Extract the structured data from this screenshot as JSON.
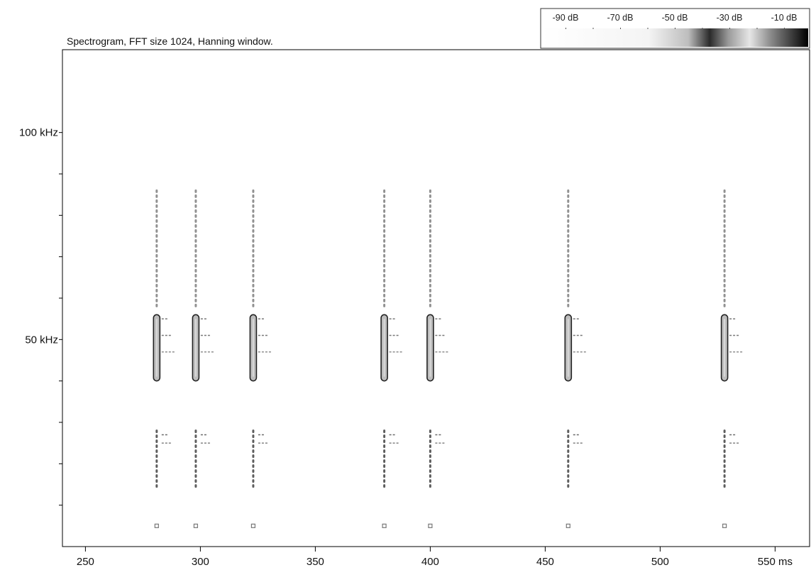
{
  "chart_data": {
    "type": "heatmap",
    "subtype": "spectrogram",
    "title": "Spectrogram, FFT size 1024, Hanning window.",
    "xlabel": "",
    "ylabel": "",
    "x_unit": "ms",
    "y_unit": "kHz",
    "xlim": [
      240,
      565
    ],
    "ylim": [
      0,
      120
    ],
    "x_ticks": [
      250,
      300,
      350,
      400,
      450,
      500,
      550
    ],
    "x_tick_labels": [
      "250",
      "300",
      "350",
      "400",
      "450",
      "500",
      "550 ms"
    ],
    "y_ticks": [
      10,
      20,
      30,
      40,
      50,
      60,
      70,
      80,
      90,
      100
    ],
    "y_tick_labels": [
      {
        "value": 100,
        "label": "100 kHz"
      },
      {
        "value": 50,
        "label": "50 kHz"
      }
    ],
    "grid": false,
    "colorbar": {
      "position": "top-right",
      "labels": [
        "-90 dB",
        "-70 dB",
        "-50 dB",
        "-30 dB",
        "-10 dB"
      ],
      "values_db": [
        -90,
        -70,
        -50,
        -30,
        -10
      ]
    },
    "calls_ms": [
      281,
      298,
      323,
      380,
      400,
      460,
      528
    ],
    "fundamental_khz": {
      "start": 56,
      "end": 40,
      "intensity_db": -15
    },
    "harmonics": [
      {
        "name": "upper",
        "start_khz": 86,
        "end_khz": 58,
        "intensity_db": -55
      },
      {
        "name": "lower",
        "start_khz": 28,
        "end_khz": 14,
        "intensity_db": -35
      },
      {
        "name": "bottom",
        "khz": 5,
        "intensity_db": -45
      }
    ],
    "echo_khz": [
      {
        "y": 55,
        "intensity_db": -40
      },
      {
        "y": 51,
        "intensity_db": -45
      },
      {
        "y": 47,
        "intensity_db": -50
      },
      {
        "y": 27,
        "intensity_db": -40
      },
      {
        "y": 25,
        "intensity_db": -45
      }
    ]
  }
}
